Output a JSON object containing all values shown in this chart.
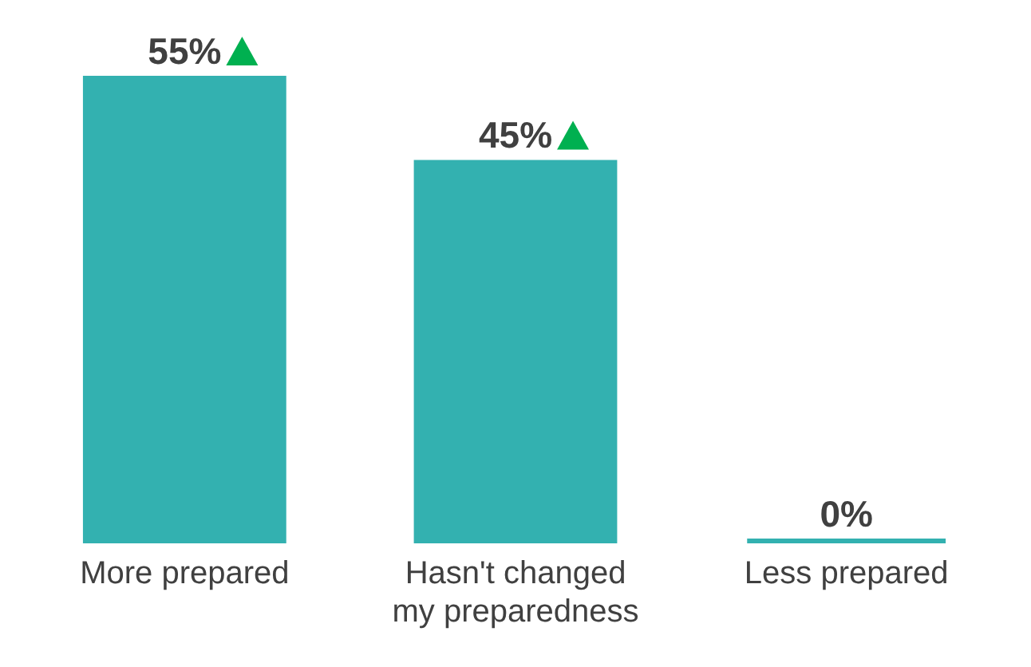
{
  "chart_data": {
    "type": "bar",
    "categories": [
      "More prepared",
      "Hasn't changed my preparedness",
      "Less prepared"
    ],
    "values": [
      55,
      45,
      0
    ],
    "color": "#33b1b0",
    "value_labels": [
      "55%",
      "45%",
      "0%"
    ]
  }
}
